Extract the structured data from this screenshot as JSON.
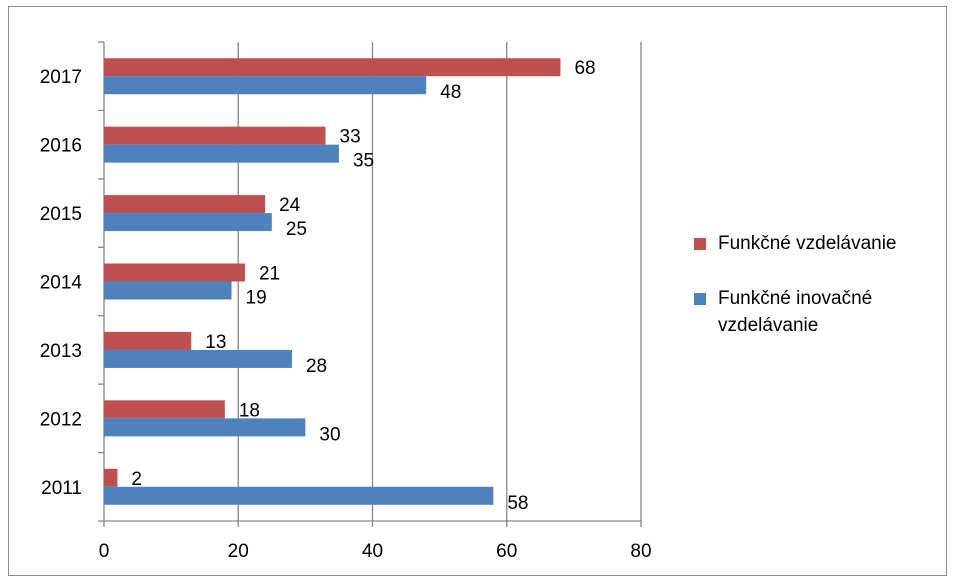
{
  "chart_data": {
    "type": "bar",
    "orientation": "horizontal",
    "categories": [
      "2011",
      "2012",
      "2013",
      "2014",
      "2015",
      "2016",
      "2017"
    ],
    "series": [
      {
        "name": "Funkčné vzdelávanie",
        "color": "#c0504d",
        "values": [
          2,
          18,
          13,
          21,
          24,
          33,
          68
        ]
      },
      {
        "name": "Funkčné inovačné vzdelávanie",
        "color": "#4f81bd",
        "values": [
          58,
          30,
          28,
          19,
          25,
          35,
          48
        ]
      }
    ],
    "xlim": [
      0,
      80
    ],
    "xticks": [
      "0",
      "20",
      "40",
      "60",
      "80"
    ],
    "grid": true,
    "legend_position": "right",
    "data_labels": true
  }
}
